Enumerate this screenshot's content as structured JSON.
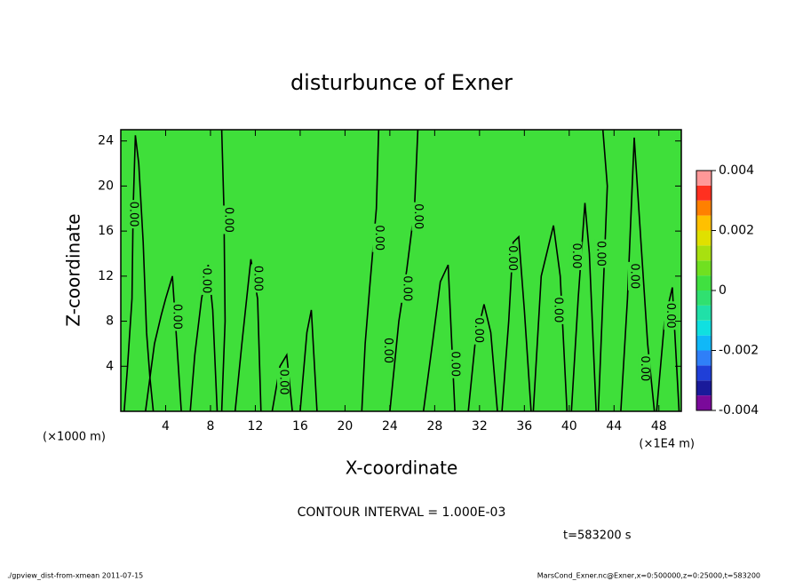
{
  "chart_data": {
    "type": "contour",
    "title": "disturbunce of Exner",
    "xlabel": "X-coordinate",
    "ylabel": "Z-coordinate",
    "x_unit_left": "(×1000 m)",
    "x_unit_right": "(×1E4 m)",
    "xlim": [
      0,
      50
    ],
    "ylim": [
      0,
      25
    ],
    "xticks": [
      4,
      8,
      12,
      16,
      20,
      24,
      28,
      32,
      36,
      40,
      44,
      48
    ],
    "yticks": [
      4,
      8,
      12,
      16,
      20,
      24
    ],
    "fill_color": "#3fdf3a",
    "line_color": "#000000",
    "contours": [
      {
        "x": [
          0.3,
          0.6,
          1.0,
          1.1,
          1.3,
          1.6,
          2.0,
          2.3,
          2.6,
          2.9
        ],
        "z": [
          0,
          4,
          10,
          18,
          24.5,
          22,
          15,
          7,
          3,
          0
        ]
      },
      {
        "x": [
          2.2,
          3.0,
          3.6,
          4.0,
          4.6,
          5.0,
          5.4
        ],
        "z": [
          0,
          6,
          8.5,
          10,
          12,
          6,
          0
        ]
      },
      {
        "x": [
          6.2,
          6.6,
          7.2,
          7.8,
          8.2,
          8.6
        ],
        "z": [
          0,
          5,
          10,
          13,
          9,
          0
        ]
      },
      {
        "x": [
          9.0,
          9.3,
          9.2,
          9.0
        ],
        "z": [
          0,
          8,
          18,
          25
        ]
      },
      {
        "x": [
          10.2,
          10.8,
          11.6,
          12.2,
          12.5
        ],
        "z": [
          0,
          6,
          13.5,
          10,
          0
        ]
      },
      {
        "x": [
          13.5,
          14.2,
          14.8,
          15.3
        ],
        "z": [
          0,
          4,
          5,
          0
        ]
      },
      {
        "x": [
          16,
          16.6,
          17,
          17.5
        ],
        "z": [
          0,
          7,
          9,
          0
        ]
      },
      {
        "x": [
          21.5,
          21.8,
          22.2,
          22.8,
          23.0
        ],
        "z": [
          0,
          6,
          11,
          18,
          25
        ]
      },
      {
        "x": [
          24.0,
          24.8,
          25.5,
          26.2,
          26.5
        ],
        "z": [
          0,
          8,
          12.5,
          18,
          25
        ]
      },
      {
        "x": [
          27,
          27.8,
          28.5,
          29.2,
          29.8
        ],
        "z": [
          0,
          6,
          11.5,
          13,
          0
        ]
      },
      {
        "x": [
          31,
          31.6,
          32.4,
          33,
          33.6
        ],
        "z": [
          0,
          6,
          9.5,
          7,
          0
        ]
      },
      {
        "x": [
          34,
          34.6,
          35,
          35.5,
          36,
          36.6
        ],
        "z": [
          0,
          8,
          15,
          15.5,
          9,
          0
        ]
      },
      {
        "x": [
          36.8,
          37.5,
          38.6,
          39.2,
          39.8
        ],
        "z": [
          0,
          12,
          16.5,
          12,
          0
        ]
      },
      {
        "x": [
          40.2,
          40.8,
          41.4,
          41.8,
          42.4
        ],
        "z": [
          0,
          10,
          18.5,
          14,
          0
        ]
      },
      {
        "x": [
          42.6,
          43.0,
          43.4,
          43.0
        ],
        "z": [
          0,
          10,
          20,
          25
        ]
      },
      {
        "x": [
          44.6,
          45.2,
          45.8,
          46.4,
          47,
          47.6
        ],
        "z": [
          0,
          10,
          24.3,
          15,
          6,
          0
        ]
      },
      {
        "x": [
          47.8,
          48.5,
          49.2,
          49.8
        ],
        "z": [
          0,
          8,
          11,
          0
        ]
      }
    ],
    "contour_labels": [
      {
        "x": 1.1,
        "z": 17.5,
        "label": "0.00"
      },
      {
        "x": 5,
        "z": 8.4,
        "label": "0.00"
      },
      {
        "x": 7.6,
        "z": 11.6,
        "label": "0.00"
      },
      {
        "x": 9.6,
        "z": 17,
        "label": "0.00"
      },
      {
        "x": 12.2,
        "z": 11.8,
        "label": "0.00"
      },
      {
        "x": 14.5,
        "z": 2.6,
        "label": "0.00"
      },
      {
        "x": 23,
        "z": 15.4,
        "label": "0.00"
      },
      {
        "x": 23.8,
        "z": 5.4,
        "label": "0.00"
      },
      {
        "x": 25.5,
        "z": 10.9,
        "label": "0.00"
      },
      {
        "x": 26.5,
        "z": 17.3,
        "label": "0.00"
      },
      {
        "x": 29.8,
        "z": 4.2,
        "label": "0.00"
      },
      {
        "x": 31.9,
        "z": 7.2,
        "label": "0.00"
      },
      {
        "x": 34.9,
        "z": 13.6,
        "label": "0.00"
      },
      {
        "x": 39,
        "z": 9,
        "label": "0.00"
      },
      {
        "x": 40.6,
        "z": 13.8,
        "label": "0.00"
      },
      {
        "x": 42.8,
        "z": 14,
        "label": "0.00"
      },
      {
        "x": 45.8,
        "z": 12,
        "label": "0.00"
      },
      {
        "x": 46.7,
        "z": 3.8,
        "label": "0.00"
      },
      {
        "x": 49,
        "z": 8.5,
        "label": "0.00"
      }
    ],
    "colorbar": {
      "levels": [
        -0.004,
        -0.0035,
        -0.003,
        -0.0025,
        -0.002,
        -0.0015,
        -0.001,
        -0.0005,
        0,
        0.0005,
        0.001,
        0.0015,
        0.002,
        0.0025,
        0.003,
        0.0035,
        0.004
      ],
      "colors": [
        "#7a0a9a",
        "#1a1a9a",
        "#1f3fd8",
        "#2f7ff8",
        "#10b8f8",
        "#10e0e0",
        "#20e0a8",
        "#30e070",
        "#40e040",
        "#70e020",
        "#a8e010",
        "#e0e000",
        "#ffc000",
        "#ff8000",
        "#ff3020",
        "#ff9898"
      ],
      "ticks": [
        -0.004,
        -0.002,
        0,
        0.002,
        0.004
      ]
    },
    "annotation": "CONTOUR INTERVAL = 1.000E-03",
    "time_label": "t=583200 s",
    "footer_left": "./gpview_dist-from-xmean  2011-07-15",
    "footer_right": "MarsCond_Exner.nc@Exner,x=0:500000,z=0:25000,t=583200"
  }
}
